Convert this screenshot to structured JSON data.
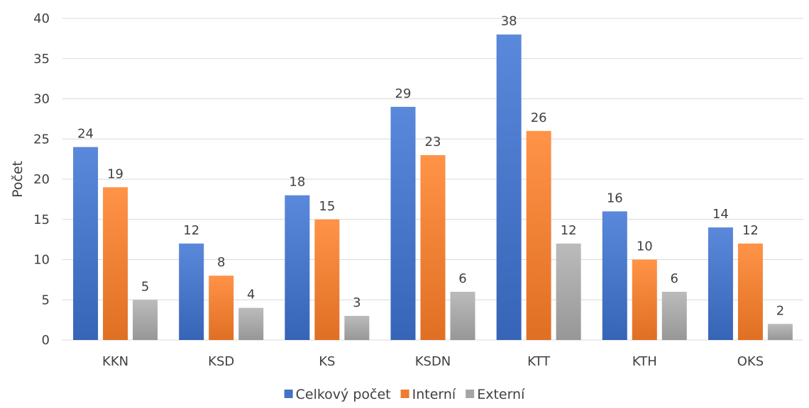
{
  "chart_data": {
    "type": "bar",
    "title": "",
    "xlabel": "",
    "ylabel": "Počet",
    "ylim": [
      0,
      40
    ],
    "ytick_step": 5,
    "grid": true,
    "legend_position": "bottom",
    "categories": [
      "KKN",
      "KSD",
      "KS",
      "KSDN",
      "KTT",
      "KTH",
      "OKS"
    ],
    "series": [
      {
        "name": "Celkový počet",
        "color": "#4472c4",
        "values": [
          24,
          12,
          18,
          29,
          38,
          16,
          14
        ]
      },
      {
        "name": "Interní",
        "color": "#ed7d31",
        "values": [
          19,
          8,
          15,
          23,
          26,
          10,
          12
        ]
      },
      {
        "name": "Externí",
        "color": "#a5a5a5",
        "values": [
          5,
          4,
          3,
          6,
          12,
          6,
          2
        ]
      }
    ]
  }
}
